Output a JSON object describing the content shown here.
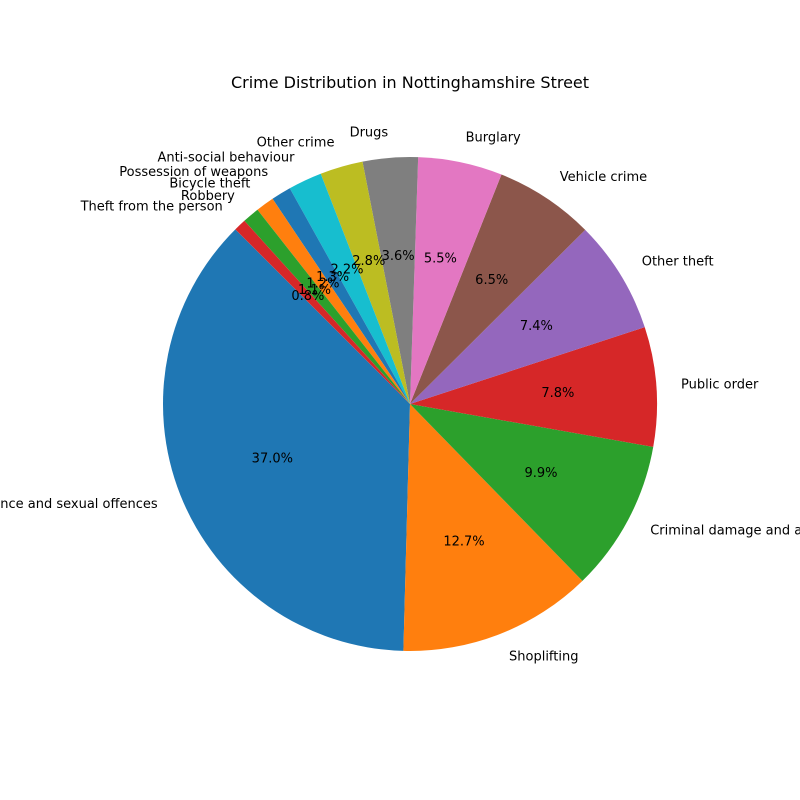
{
  "chart_data": {
    "type": "pie",
    "title": "Crime Distribution in Nottinghamshire Street",
    "start_angle_deg": 135,
    "direction": "counterclockwise",
    "slices": [
      {
        "label": "Violence and sexual offences",
        "value": 37.0,
        "pct_text": "37.0%",
        "color": "#1f77b4"
      },
      {
        "label": "Shoplifting",
        "value": 12.7,
        "pct_text": "12.7%",
        "color": "#ff7f0e"
      },
      {
        "label": "Criminal damage and arson",
        "value": 9.9,
        "pct_text": "9.9%",
        "color": "#2ca02c"
      },
      {
        "label": "Public order",
        "value": 7.8,
        "pct_text": "7.8%",
        "color": "#d62728"
      },
      {
        "label": "Other theft",
        "value": 7.4,
        "pct_text": "7.4%",
        "color": "#9467bd"
      },
      {
        "label": "Vehicle crime",
        "value": 6.5,
        "pct_text": "6.5%",
        "color": "#8c564b"
      },
      {
        "label": "Burglary",
        "value": 5.5,
        "pct_text": "5.5%",
        "color": "#e377c2"
      },
      {
        "label": "Drugs",
        "value": 3.6,
        "pct_text": "3.6%",
        "color": "#7f7f7f"
      },
      {
        "label": "Other crime",
        "value": 2.8,
        "pct_text": "2.8%",
        "color": "#bcbd22"
      },
      {
        "label": "Anti-social behaviour",
        "value": 2.2,
        "pct_text": "2.2%",
        "color": "#17becf"
      },
      {
        "label": "Possession of weapons",
        "value": 1.3,
        "pct_text": "1.3%",
        "color": "#1f77b4"
      },
      {
        "label": "Bicycle theft",
        "value": 1.2,
        "pct_text": "1.2%",
        "color": "#ff7f0e"
      },
      {
        "label": "Robbery",
        "value": 1.1,
        "pct_text": "1.1%",
        "color": "#2ca02c"
      },
      {
        "label": "Theft from the person",
        "value": 0.8,
        "pct_text": "0.8%",
        "color": "#d62728"
      }
    ]
  }
}
